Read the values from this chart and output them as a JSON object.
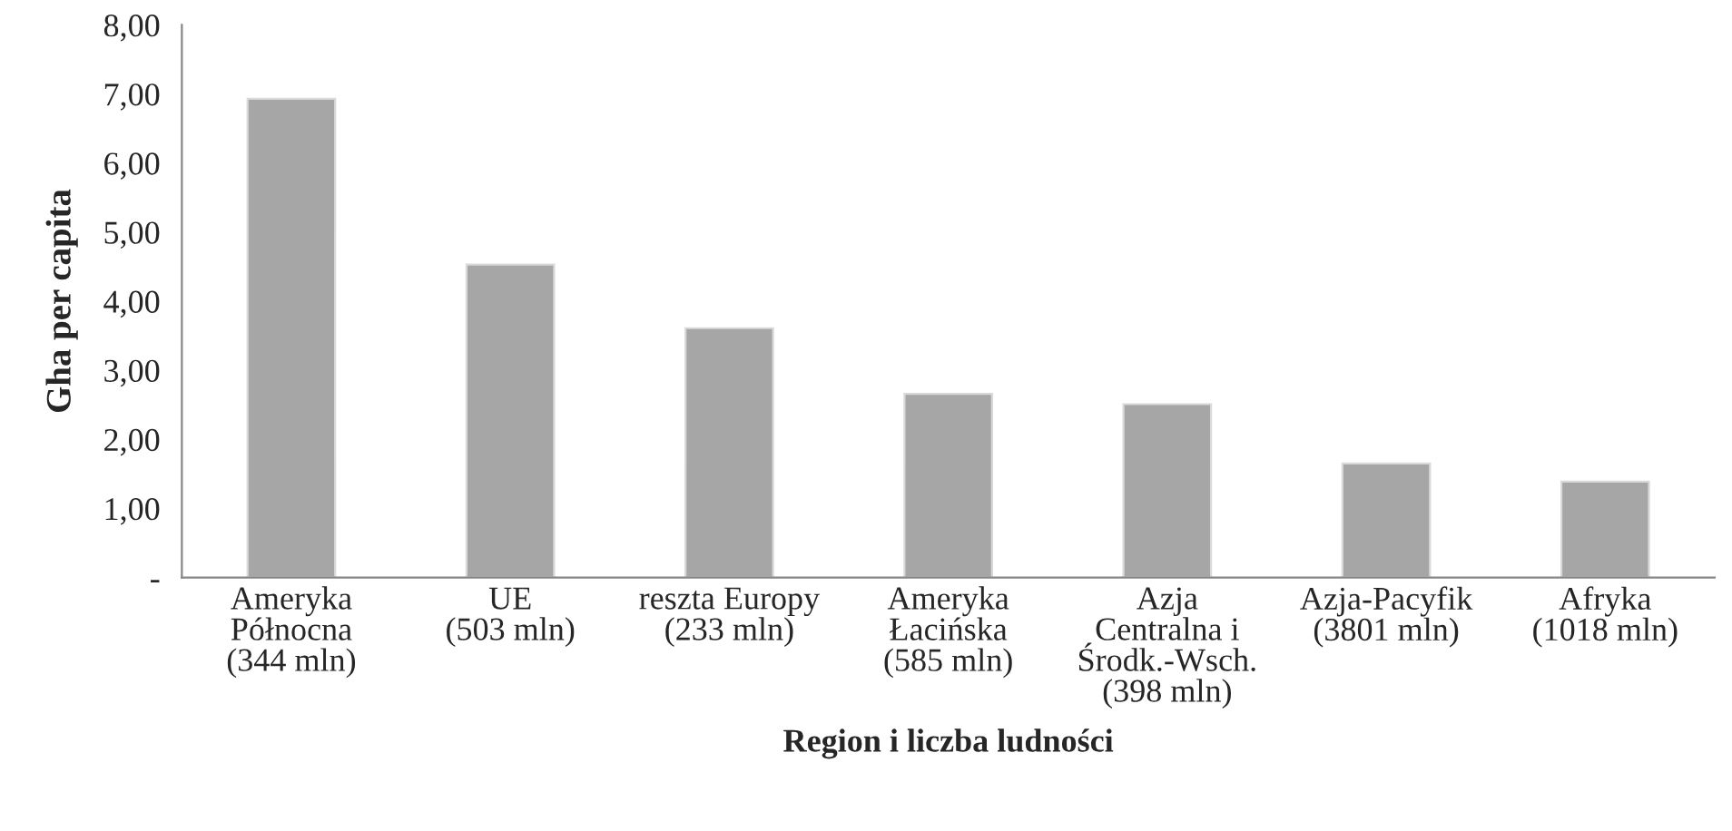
{
  "chart_data": {
    "type": "bar",
    "xlabel": "Region i liczba ludności",
    "ylabel": "Gha per capita",
    "categories": [
      "Ameryka\nPółnocna\n(344 mln)",
      "UE\n(503 mln)",
      "reszta Europy\n(233 mln)",
      "Ameryka\nŁacińska\n(585 mln)",
      "Azja\nCentralna i\nŚrodk.-Wsch.\n(398 mln)",
      "Azja-Pacyfik\n(3801 mln)",
      "Afryka\n(1018 mln)"
    ],
    "values": [
      6.93,
      4.53,
      3.61,
      2.66,
      2.51,
      1.65,
      1.39
    ],
    "color": "#a6a6a6",
    "ylim": [
      0,
      8
    ],
    "yticks": [
      {
        "value": 0,
        "label": "-"
      },
      {
        "value": 1,
        "label": "1,00"
      },
      {
        "value": 2,
        "label": "2,00"
      },
      {
        "value": 3,
        "label": "3,00"
      },
      {
        "value": 4,
        "label": "4,00"
      },
      {
        "value": 5,
        "label": "5,00"
      },
      {
        "value": 6,
        "label": "6,00"
      },
      {
        "value": 7,
        "label": "7,00"
      },
      {
        "value": 8,
        "label": "8,00"
      }
    ],
    "grid": false,
    "legend": false
  }
}
